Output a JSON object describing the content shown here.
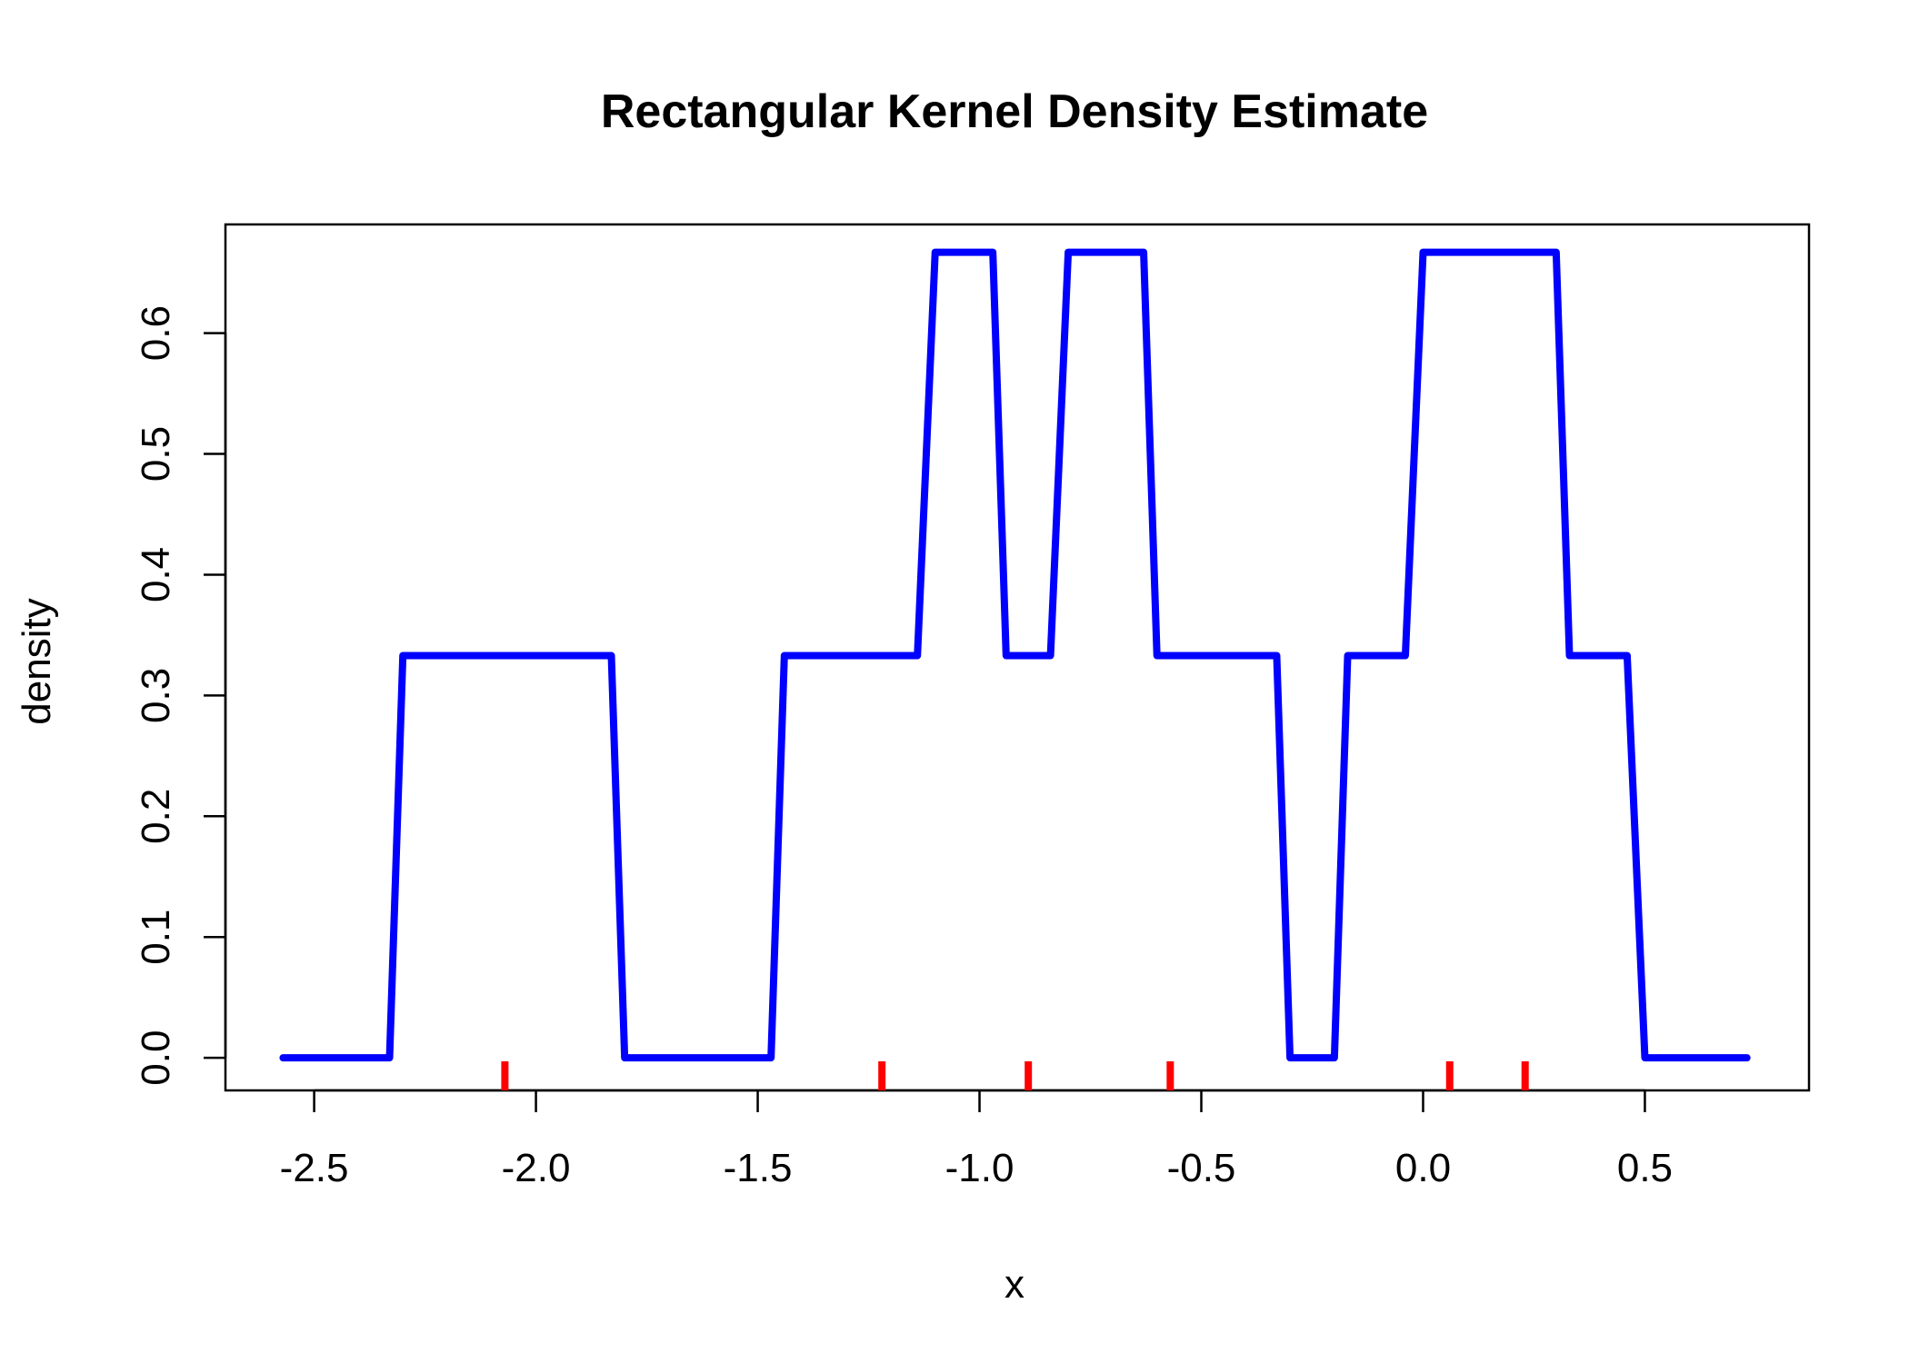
{
  "chart_data": {
    "type": "line",
    "title": "Rectangular Kernel Density Estimate",
    "xlabel": "x",
    "ylabel": "density",
    "xlim": [
      -2.7,
      0.87
    ],
    "ylim": [
      -0.027,
      0.69
    ],
    "x_ticks": [
      -2.5,
      -2.0,
      -1.5,
      -1.0,
      -0.5,
      0.0,
      0.5
    ],
    "x_tick_labels": [
      "-2.5",
      "-2.0",
      "-1.5",
      "-1.0",
      "-0.5",
      "0.0",
      "0.5"
    ],
    "y_ticks": [
      0.0,
      0.1,
      0.2,
      0.3,
      0.4,
      0.5,
      0.6
    ],
    "y_tick_labels": [
      "0.0",
      "0.1",
      "0.2",
      "0.3",
      "0.4",
      "0.5",
      "0.6"
    ],
    "grid": false,
    "series": [
      {
        "color": "#0000ff",
        "x": [
          -2.57,
          -2.33,
          -2.3,
          -1.83,
          -1.8,
          -1.47,
          -1.44,
          -1.14,
          -1.1,
          -0.97,
          -0.94,
          -0.84,
          -0.8,
          -0.63,
          -0.6,
          -0.33,
          -0.3,
          -0.2,
          -0.17,
          -0.04,
          0.0,
          0.3,
          0.33,
          0.46,
          0.5,
          0.73
        ],
        "y": [
          0.0,
          0.0,
          0.333,
          0.333,
          0.0,
          0.0,
          0.333,
          0.333,
          0.667,
          0.667,
          0.333,
          0.333,
          0.667,
          0.667,
          0.333,
          0.333,
          0.0,
          0.0,
          0.333,
          0.333,
          0.667,
          0.667,
          0.333,
          0.333,
          0.0,
          0.0
        ]
      }
    ],
    "rug": {
      "color": "#ff0000",
      "x": [
        -2.07,
        -1.22,
        -0.89,
        -0.57,
        0.06,
        0.23
      ]
    }
  }
}
